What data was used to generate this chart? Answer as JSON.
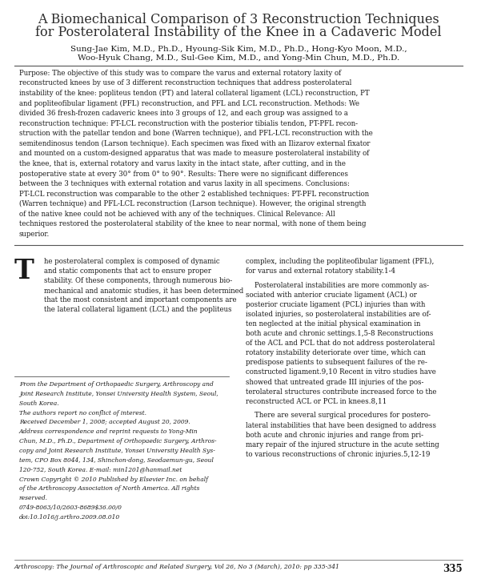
{
  "title_line1": "A Biomechanical Comparison of 3 Reconstruction Techniques",
  "title_line2": "for Posterolateral Instability of the Knee in a Cadaveric Model",
  "authors_line1": "Sung-Jae Kim, M.D., Ph.D., Hyoung-Sik Kim, M.D., Ph.D., Hong-Kyo Moon, M.D.,",
  "authors_line2": "Woo-Hyuk Chang, M.D., Sul-Gee Kim, M.D., and Yong-Min Chun, M.D., Ph.D.",
  "abstract_full": "Purpose: The objective of this study was to compare the varus and external rotatory laxity of reconstructed knees by use of 3 different reconstruction techniques that address posterolateral instability of the knee: popliteus tendon (PT) and lateral collateral ligament (LCL) reconstruction, PT and popliteofibular ligament (PFL) reconstruction, and PFL and LCL reconstruction. Methods: We divided 36 fresh-frozen cadaveric knees into 3 groups of 12, and each group was assigned to a reconstruction technique: PT-LCL reconstruction with the posterior tibialis tendon, PT-PFL reconstruction with the patellar tendon and bone (Warren technique), and PFL-LCL reconstruction with the semitendinosus tendon (Larson technique). Each specimen was fixed with an Ilizarov external fixator and mounted on a custom-designed apparatus that was made to measure posterolateral instability of the knee, that is, external rotatory and varus laxity in the intact state, after cutting, and in the postoperative state at every 30° from 0° to 90°. Results: There were no significant differences between the 3 techniques with external rotation and varus laxity in all specimens. Conclusions: PT-LCL reconstruction was comparable to the other 2 established techniques: PT-PFL reconstruction (Warren technique) and PFL-LCL reconstruction (Larson technique). However, the original strength of the native knee could not be achieved with any of the techniques. Clinical Relevance: All techniques restored the posterolateral stability of the knee to near normal, with none of them being superior.",
  "body_left_drop": "T",
  "body_left_rest": "he posterolateral complex is composed of dynamic\nand static components that act to ensure proper\nstability. Of these components, through numerous bio-\nmechanical and anatomic studies, it has been determined\nthat the most consistent and important components are\nthe lateral collateral ligament (LCL) and the popliteus",
  "body_right_p1": "complex, including the popliteofibular ligament (PFL),\nfor varus and external rotatory stability.1-4",
  "body_right_p2": "    Posterolateral instabilities are more commonly as-\nsociated with anterior cruciate ligament (ACL) or\nposterior cruciate ligament (PCL) injuries than with\nisolated injuries, so posterolateral instabilities are of-\nten neglected at the initial physical examination in\nboth acute and chronic settings.1,5-8 Reconstructions\nof the ACL and PCL that do not address posterolateral\nrotatory instability deteriorate over time, which can\npredispose patients to subsequent failures of the re-\nconstructed ligament.9,10 Recent in vitro studies have\nshowed that untreated grade III injuries of the pos-\nterolateral structures contribute increased force to the\nreconstructed ACL or PCL in knees.8,11",
  "body_right_p3": "    There are several surgical procedures for postero-\nlateral instabilities that have been designed to address\nboth acute and chronic injuries and range from pri-\nmary repair of the injured structure in the acute setting\nto various reconstructions of chronic injuries.5,12-19",
  "footnote_lines": [
    "From the Department of Orthopaedic Surgery, Arthroscopy and",
    "Joint Research Institute, Yonsei University Health System, Seoul,",
    "South Korea.",
    "The authors report no conflict of interest.",
    "Received December 1, 2008; accepted August 20, 2009.",
    "Address correspondence and reprint requests to Yong-Min",
    "Chun, M.D., Ph.D., Department of Orthopaedic Surgery, Arthros-",
    "copy and Joint Research Institute, Yonsei University Health Sys-",
    "tem, CPO Box 8044, 134, Shinchon-dong, Seodaemun-gu, Seoul",
    "120-752, South Korea. E-mail: min1201@hanmail.net",
    "Crown Copyright © 2010 Published by Elsevier Inc. on behalf",
    "of the Arthroscopy Association of North America. All rights",
    "reserved.",
    "0749-8063/10/2603-8689$36.00/0",
    "doi:10.1016/j.arthro.2009.08.010"
  ],
  "journal_footer": "Arthroscopy: The Journal of Arthroscopic and Related Surgery, Vol 26, No 3 (March), 2010: pp 335-341",
  "page_number": "335",
  "bg_color": "#ffffff",
  "text_color": "#1a1a1a",
  "title_color": "#2c2c2c",
  "rule_color": "#555555"
}
